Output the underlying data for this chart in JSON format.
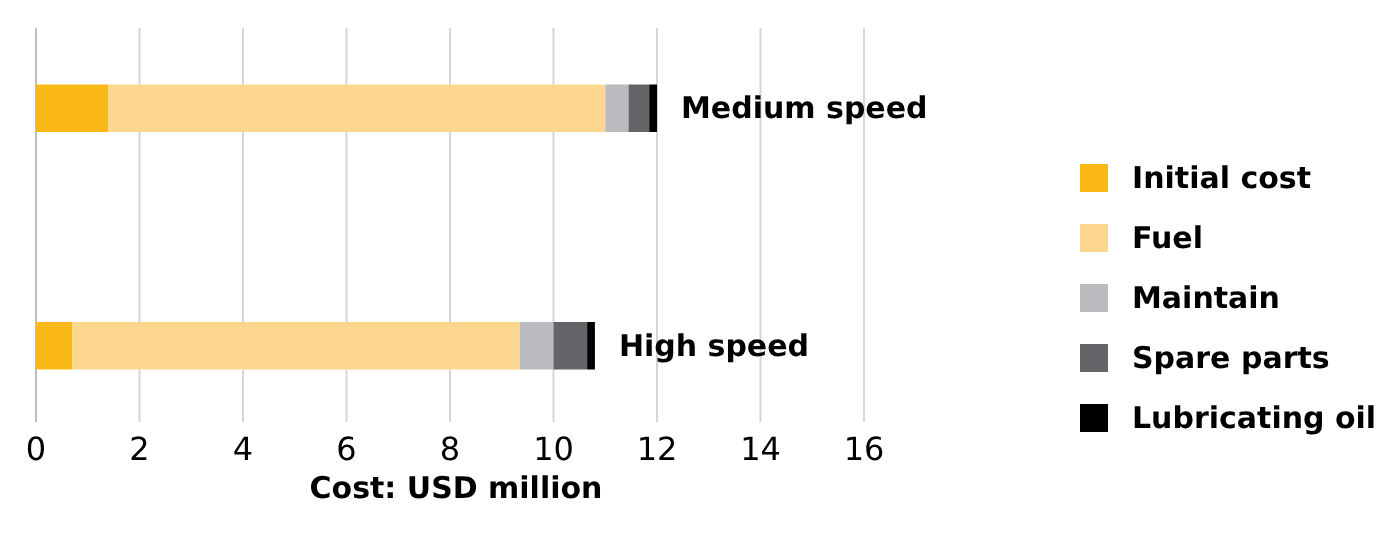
{
  "chart_data": {
    "type": "bar",
    "orientation": "horizontal",
    "stacked": true,
    "xlabel": "Cost: USD million",
    "categories": [
      "Medium speed",
      "High speed"
    ],
    "series": [
      {
        "name": "Initial cost",
        "color": "#fbb917",
        "values": [
          1.4,
          0.7
        ]
      },
      {
        "name": "Fuel",
        "color": "#fdd78e",
        "values": [
          9.6,
          8.65
        ]
      },
      {
        "name": "Maintain",
        "color": "#bbbcc0",
        "values": [
          0.45,
          0.65
        ]
      },
      {
        "name": "Spare parts",
        "color": "#636468",
        "values": [
          0.4,
          0.65
        ]
      },
      {
        "name": "Lubricating oil",
        "color": "#000000",
        "values": [
          0.15,
          0.15
        ]
      }
    ],
    "xlim": [
      0,
      16
    ],
    "xticks": [
      0,
      2,
      4,
      6,
      8,
      10,
      12,
      14,
      16
    ],
    "grid": "x",
    "legend": "right"
  }
}
